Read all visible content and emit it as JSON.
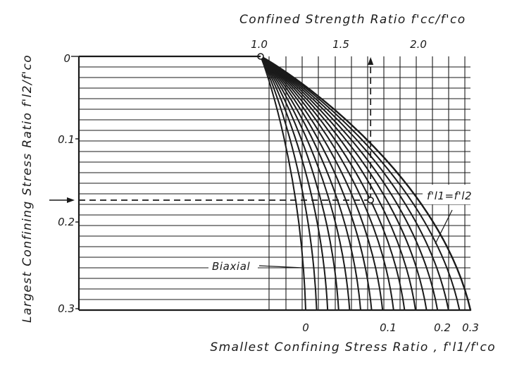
{
  "chart_data": {
    "type": "line",
    "title": "",
    "top_axis": {
      "label": "Confined Strength Ratio f'cc/f'co",
      "ticks": [
        "1.0",
        "1.5",
        "2.0"
      ]
    },
    "left_axis": {
      "label": "Largest Confining Stress Ratio f'l2/f'co",
      "ticks": [
        "0",
        "0.1",
        "0.2",
        "0.3"
      ],
      "range": [
        0,
        0.3
      ]
    },
    "bottom_axis": {
      "label": "Smallest Confining Stress Ratio , f'l1/f'co",
      "ticks": [
        "0",
        "0.1",
        "0.2",
        "0.3"
      ],
      "range": [
        0,
        0.3
      ]
    },
    "annotations": {
      "biaxial": "Biaxial",
      "equal_confinement": "f'l1=f'l2"
    },
    "series": [
      {
        "name": "Biaxial",
        "points": [
          [
            0,
            0
          ],
          [
            0,
            0.05
          ],
          [
            0,
            0.1
          ],
          [
            0,
            0.15
          ],
          [
            0,
            0.2
          ],
          [
            0,
            0.25
          ],
          [
            0,
            0.3
          ]
        ]
      },
      {
        "name": "f'l1=f'l2",
        "points": [
          [
            0,
            0
          ],
          [
            0.05,
            0.05
          ],
          [
            0.1,
            0.1
          ],
          [
            0.15,
            0.15
          ],
          [
            0.2,
            0.2
          ],
          [
            0.25,
            0.25
          ],
          [
            0.3,
            0.3
          ]
        ]
      }
    ],
    "example": {
      "f_l2_over_f_co": 0.17,
      "f_cc_over_f_co": 1.7
    }
  }
}
